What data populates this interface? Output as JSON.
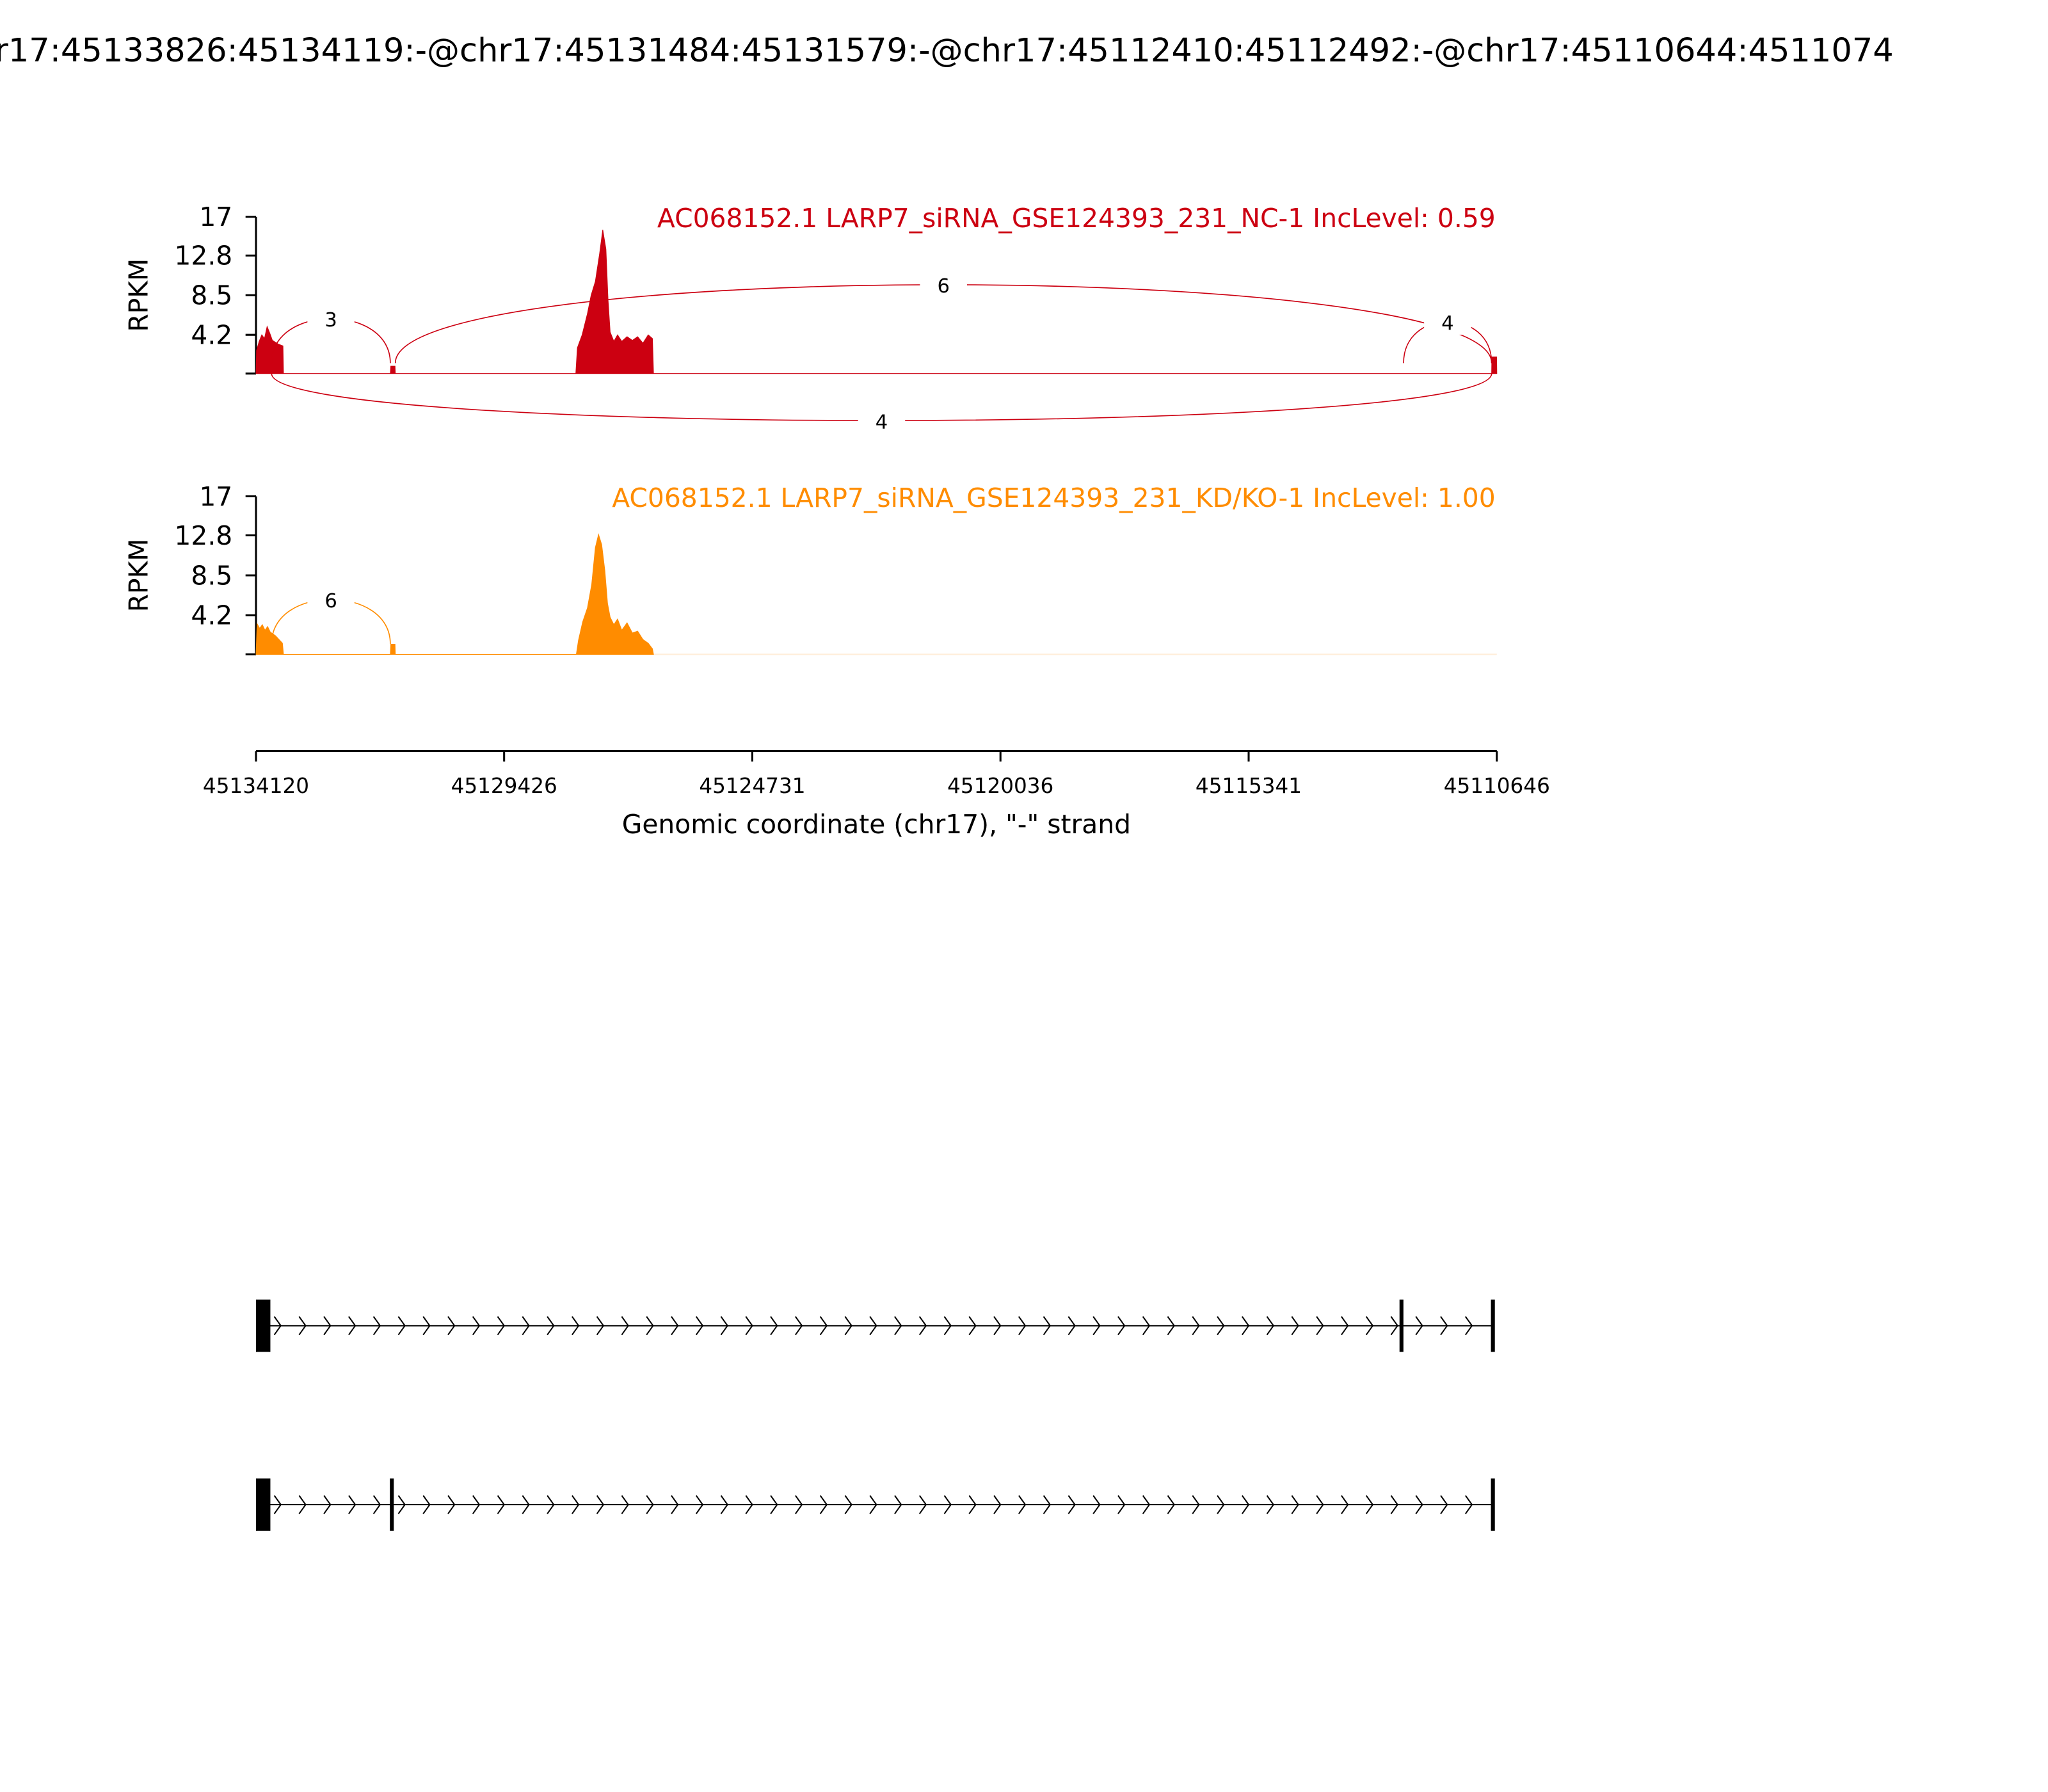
{
  "title": "r17:45133826:45134119:-@chr17:45131484:45131579:-@chr17:45112410:45112492:-@chr17:45110644:4511074",
  "chart_data": [
    {
      "type": "area",
      "title": "AC068152.1 LARP7_siRNA_GSE124393_231_NC-1 IncLevel: 0.59",
      "ylabel": "RPKM",
      "color": "#cc0011",
      "x": [
        45134119,
        45134110,
        45134060,
        45134010,
        45133960,
        45133910,
        45133860,
        45133810,
        45133700,
        45133610,
        45133600,
        45131579,
        45131570,
        45131490,
        45131484,
        45128070,
        45128040,
        45127950,
        45127850,
        45127780,
        45127700,
        45127620,
        45127560,
        45127500,
        45127460,
        45127420,
        45127350,
        45127280,
        45127200,
        45127100,
        45127000,
        45126900,
        45126800,
        45126700,
        45126620,
        45126600,
        45110744,
        45110740,
        45110650,
        45110646
      ],
      "values": [
        0,
        2.5,
        3.5,
        4.2,
        3.8,
        5.1,
        4.4,
        3.6,
        3.2,
        3.0,
        0,
        0,
        0.8,
        0.8,
        0,
        0,
        2.8,
        4.2,
        6.5,
        8.5,
        10,
        13,
        15.6,
        13.5,
        8,
        4.5,
        3.5,
        4.2,
        3.5,
        4.0,
        3.6,
        4.0,
        3.3,
        4.2,
        3.8,
        0,
        0,
        1.8,
        1.8,
        0
      ],
      "xlim": [
        45134120,
        45110646
      ],
      "ylim": [
        0,
        17
      ],
      "yticks": [
        4.2,
        8.5,
        12.8,
        17
      ],
      "junctions": [
        {
          "start": 45133826,
          "end": 45131579,
          "count": 3,
          "side": "above"
        },
        {
          "start": 45131484,
          "end": 45110744,
          "count": 6,
          "side": "above"
        },
        {
          "start": 45112410,
          "end": 45110744,
          "count": 4,
          "side": "above"
        },
        {
          "start": 45133826,
          "end": 45110744,
          "count": 4,
          "side": "below"
        }
      ]
    },
    {
      "type": "area",
      "title": "AC068152.1 LARP7_siRNA_GSE124393_231_KD/KO-1 IncLevel: 1.00",
      "ylabel": "RPKM",
      "color": "#ff8c00",
      "x": [
        45134119,
        45134100,
        45134050,
        45134000,
        45133950,
        45133900,
        45133850,
        45133750,
        45133620,
        45133600,
        45131579,
        45131570,
        45131490,
        45131484,
        45128060,
        45128020,
        45127940,
        45127850,
        45127770,
        45127700,
        45127640,
        45127580,
        45127520,
        45127470,
        45127420,
        45127350,
        45127280,
        45127200,
        45127100,
        45127000,
        45126900,
        45126800,
        45126700,
        45126620,
        45126600
      ],
      "values": [
        0,
        3.3,
        2.8,
        3.2,
        2.6,
        3.0,
        2.4,
        2.0,
        1.2,
        0,
        0,
        1.1,
        1.1,
        0,
        0,
        1.5,
        3.5,
        5.0,
        7.5,
        11.5,
        12.9,
        11.8,
        9.0,
        5.5,
        4.0,
        3.2,
        3.8,
        2.6,
        3.4,
        2.3,
        2.5,
        1.6,
        1.2,
        0.6,
        0
      ],
      "xlim": [
        45134120,
        45110646
      ],
      "ylim": [
        0,
        17
      ],
      "yticks": [
        4.2,
        8.5,
        12.8,
        17
      ],
      "xticks": [
        45134120,
        45129426,
        45124731,
        45120036,
        45115341,
        45110646
      ],
      "xlabel": "Genomic coordinate (chr17), \"-\" strand",
      "junctions": [
        {
          "start": 45133826,
          "end": 45131579,
          "count": 6,
          "side": "above"
        }
      ]
    }
  ]
}
